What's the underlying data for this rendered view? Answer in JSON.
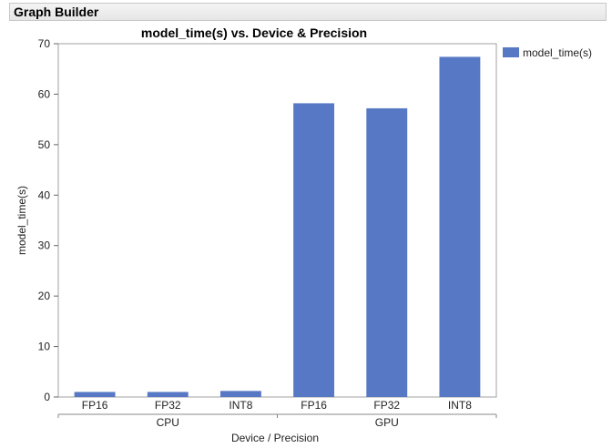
{
  "window": {
    "title": "Graph Builder"
  },
  "chart_data": {
    "type": "bar",
    "title": "model_time(s) vs. Device & Precision",
    "xlabel": "Device / Precision",
    "ylabel": "model_time(s)",
    "ylim": [
      0,
      70
    ],
    "yticks": [
      0,
      10,
      20,
      30,
      40,
      50,
      60,
      70
    ],
    "groups": [
      {
        "name": "CPU",
        "categories": [
          "FP16",
          "FP32",
          "INT8"
        ]
      },
      {
        "name": "GPU",
        "categories": [
          "FP16",
          "FP32",
          "INT8"
        ]
      }
    ],
    "series": [
      {
        "name": "model_time(s)",
        "values": [
          1.0,
          1.0,
          1.2,
          58.2,
          57.2,
          67.4
        ]
      }
    ],
    "bar_color": "#5778c4",
    "legend": {
      "position": "right"
    },
    "grid": false
  }
}
